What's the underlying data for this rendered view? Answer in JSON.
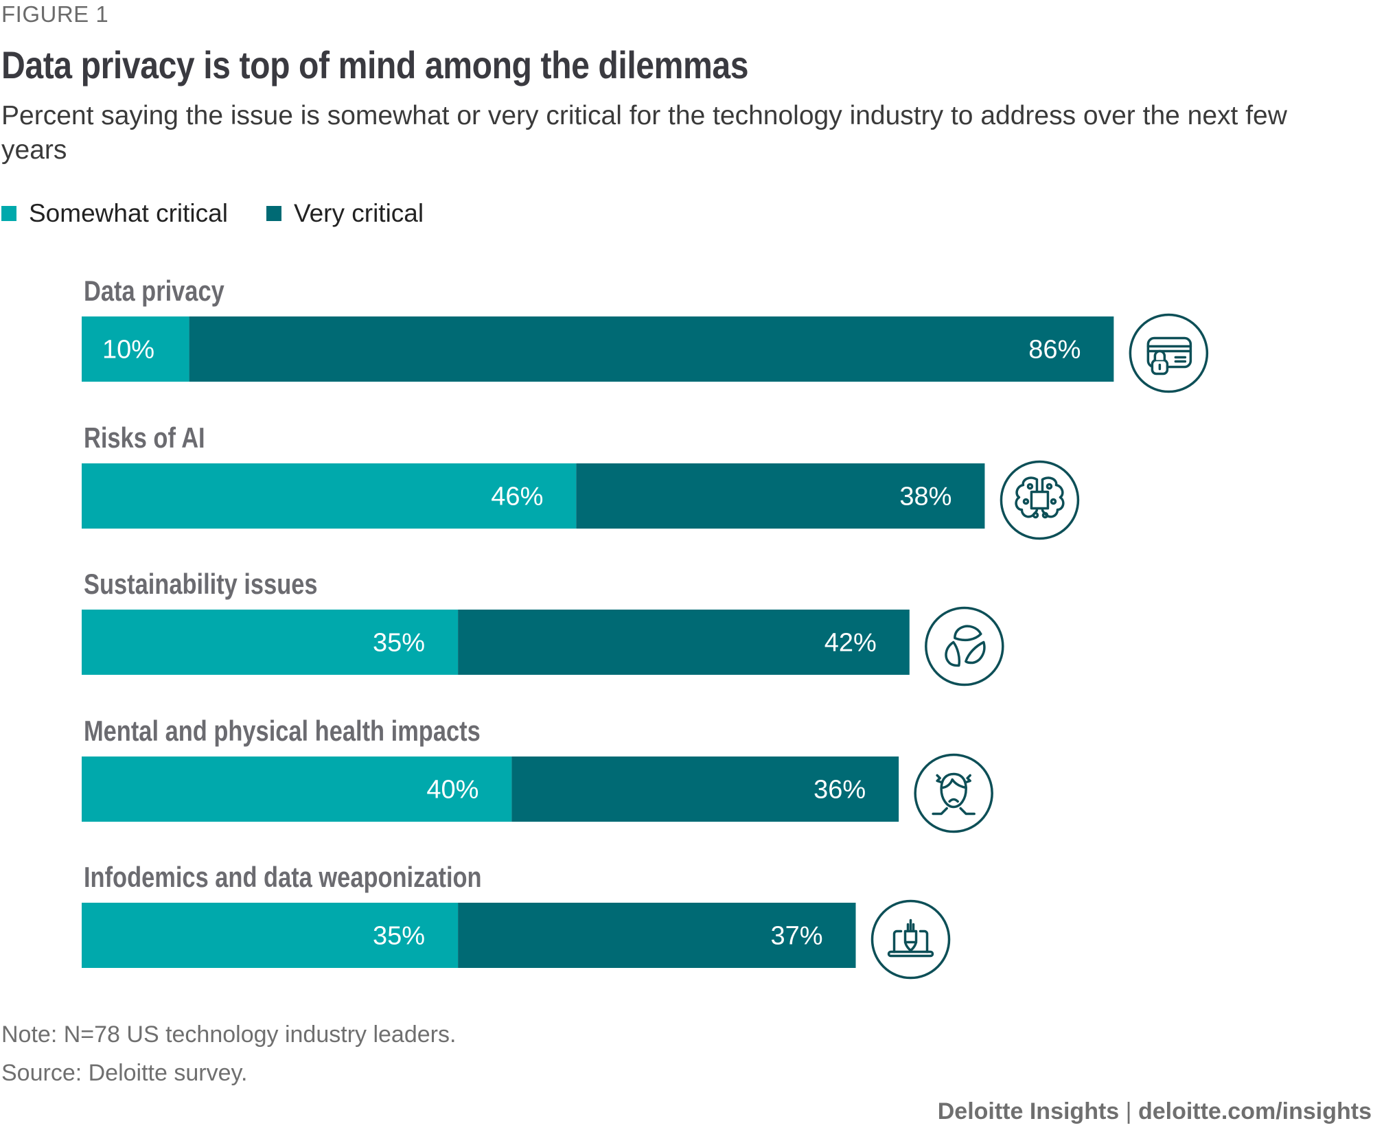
{
  "figure_label": "FIGURE 1",
  "title": "Data privacy is top of mind among the dilemmas",
  "subtitle": "Percent saying the issue is somewhat or very critical for the technology industry to address over the next few years",
  "colors": {
    "somewhat": "#00a9ac",
    "very": "#006a74",
    "icon": "#0d4f57",
    "label": "#6b6b70"
  },
  "legend": [
    {
      "label": "Somewhat critical",
      "key": "somewhat"
    },
    {
      "label": "Very critical",
      "key": "very"
    }
  ],
  "chart_data": {
    "type": "bar",
    "orientation": "horizontal",
    "stacked": true,
    "title": "Data privacy is top of mind among the dilemmas",
    "subtitle": "Percent saying the issue is somewhat or very critical for the technology industry to address over the next few years",
    "xlabel": "",
    "ylabel": "",
    "xlim": [
      0,
      100
    ],
    "grid": false,
    "legend_position": "top-left",
    "unit": "%",
    "categories": [
      "Data privacy",
      "Risks of AI",
      "Sustainability issues",
      "Mental and physical health impacts",
      "Infodemics and data weaponization"
    ],
    "icons": [
      "lock-card-icon",
      "brain-chip-icon",
      "recycle-leaves-icon",
      "stressed-person-icon",
      "laptop-bomb-icon"
    ],
    "series": [
      {
        "name": "Somewhat critical",
        "values": [
          10,
          46,
          35,
          40,
          35
        ]
      },
      {
        "name": "Very critical",
        "values": [
          86,
          38,
          42,
          36,
          37
        ]
      }
    ]
  },
  "footer": {
    "note": "Note: N=78 US technology industry leaders.",
    "source": "Source: Deloitte survey.",
    "brand": "Deloitte Insights",
    "separator": "|",
    "url": "deloitte.com/insights"
  }
}
